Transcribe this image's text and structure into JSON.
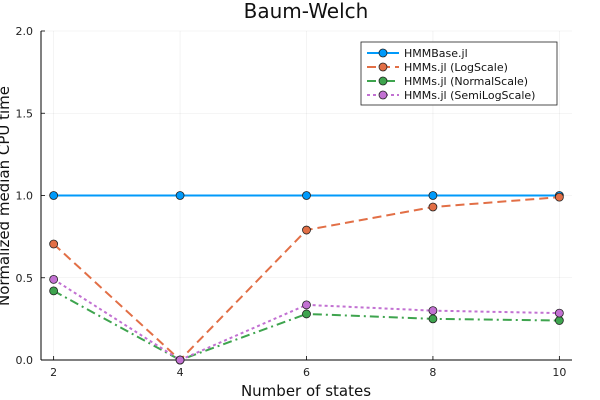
{
  "chart_data": {
    "type": "line",
    "title": "Baum-Welch",
    "xlabel": "Number of states",
    "ylabel": "Normalized median CPU time",
    "x": [
      2,
      4,
      6,
      8,
      10
    ],
    "xlim": [
      1.8,
      10.2
    ],
    "ylim": [
      0.0,
      2.0
    ],
    "xticks": [
      2,
      4,
      6,
      8,
      10
    ],
    "yticks": [
      "0.0",
      "0.5",
      "1.0",
      "1.5",
      "2.0"
    ],
    "grid": true,
    "legend_position": "top-right",
    "series": [
      {
        "name": "HMMBase.jl",
        "values": [
          1.0,
          1.0,
          1.0,
          1.0,
          1.0
        ],
        "color": "#009AFA",
        "dash": "solid"
      },
      {
        "name": "HMMs.jl (LogScale)",
        "values": [
          0.705,
          0.0,
          0.79,
          0.93,
          0.99
        ],
        "color": "#E26F46",
        "dash": "dash"
      },
      {
        "name": "HMMs.jl (NormalScale)",
        "values": [
          0.42,
          0.0,
          0.28,
          0.25,
          0.24
        ],
        "color": "#3EA44E",
        "dash": "dashdot"
      },
      {
        "name": "HMMs.jl (SemiLogScale)",
        "values": [
          0.49,
          0.0,
          0.335,
          0.3,
          0.285
        ],
        "color": "#C271D2",
        "dash": "dot"
      }
    ]
  }
}
